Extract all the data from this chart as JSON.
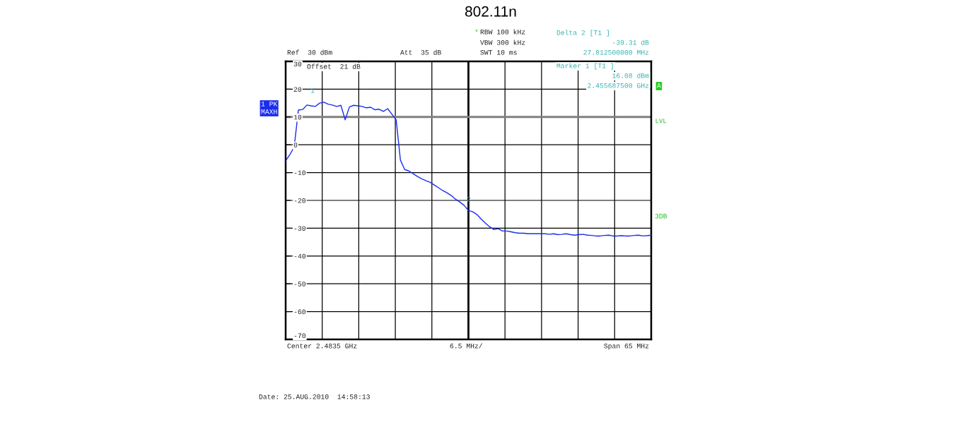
{
  "chart_data": {
    "type": "line",
    "title": "802.11n",
    "categories": [
      null,
      null,
      null,
      null,
      null,
      null,
      null,
      null,
      null,
      null,
      null,
      null,
      null,
      null,
      null,
      null,
      null,
      null,
      null,
      null,
      null,
      null,
      null,
      null,
      null,
      null,
      null,
      null,
      null,
      null,
      null,
      null,
      null,
      null,
      null,
      null,
      null,
      null,
      null,
      null,
      null,
      null,
      null,
      null,
      null,
      null,
      null,
      null,
      null,
      null,
      null,
      null,
      null,
      null,
      null,
      null,
      null,
      null,
      null,
      null,
      null,
      null,
      null,
      null,
      null,
      null,
      null,
      null,
      null,
      null,
      null,
      null,
      null,
      null,
      null,
      null,
      null,
      null,
      null,
      null,
      null,
      null,
      null,
      null,
      null,
      null,
      null
    ],
    "series": [
      {
        "color": "#1a2cf0",
        "values": [
          -5.8,
          -3.5,
          -0.8,
          12.5,
          12.7,
          14.3,
          14.0,
          13.8,
          15.0,
          15.3,
          14.6,
          14.3,
          13.8,
          14.2,
          9.0,
          13.6,
          14.2,
          14.0,
          13.8,
          13.3,
          13.5,
          12.6,
          12.8,
          12.0,
          13.0,
          11.0,
          9.0,
          -5.5,
          -8.9,
          -9.4,
          -10.4,
          -11.4,
          -12.2,
          -12.9,
          -13.5,
          -14.5,
          -15.5,
          -16.5,
          -17.3,
          -18.3,
          -19.6,
          -20.6,
          -21.8,
          -23.6,
          -24.1,
          -25.1,
          -26.7,
          -28.2,
          -29.5,
          -30.5,
          -30.2,
          -31.0,
          -31.0,
          -31.3,
          -31.6,
          -31.8,
          -31.8,
          -32.0,
          -32.0,
          -32.0,
          -32.0,
          -32.0,
          -32.2,
          -32.0,
          -32.3,
          -32.2,
          -32.0,
          -32.3,
          -32.5,
          -32.3,
          -32.2,
          -32.5,
          -32.6,
          -32.8,
          -32.8,
          -32.6,
          -32.5,
          -32.8,
          -32.8,
          -32.7,
          -32.8,
          -32.8,
          -32.6,
          -32.5,
          -32.8,
          -32.7,
          -32.5
        ]
      }
    ],
    "ylim": [
      -70,
      30
    ],
    "yticks": [
      30,
      20,
      10,
      0,
      -10,
      -20,
      -30,
      -40,
      -50,
      -60,
      -70
    ],
    "grid": true,
    "marker": "none",
    "line_style": "solid",
    "ref_lines": [
      {
        "axis": "y",
        "value": 10,
        "label": "LVL",
        "color": "#808080"
      }
    ],
    "annotations": [
      "Ref  30 dBm",
      "Att  35 dB",
      "Offset  21 dB",
      "RBW 100 kHz",
      "VBW 300 kHz",
      "SWT 10 ms",
      "Delta 2 [T1 ]",
      "-39.31 dB",
      "27.812500000 MHz",
      "Marker 1 [T1 ]",
      "16.08 dBm",
      "2.455687500 GHz",
      "1 PK",
      "MAXH",
      "A",
      "3DB",
      "Center 2.4835 GHz",
      "6.5 MHz/",
      "Span 65 MHz",
      "Date: 25.AUG.2010  14:58:13",
      "1",
      "2",
      "*"
    ]
  }
}
